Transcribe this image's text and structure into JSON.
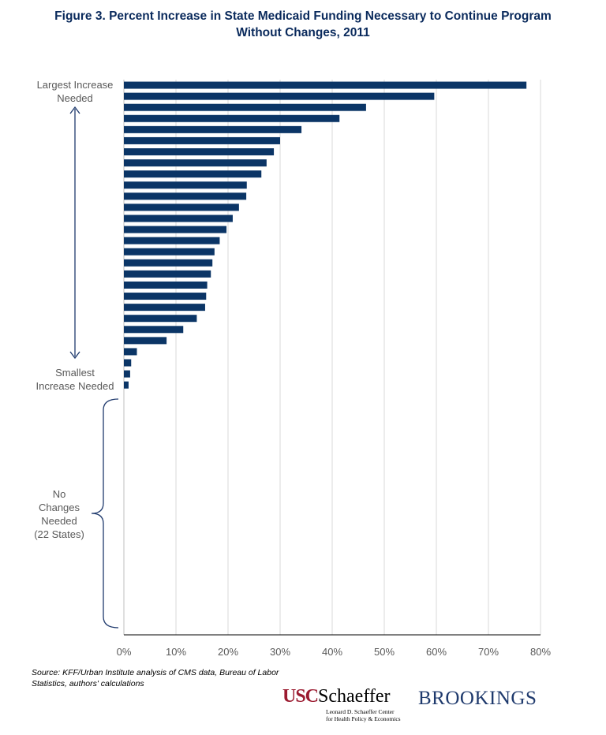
{
  "title_lines": [
    "Figure 3. Percent Increase in State Medicaid Funding Necessary to Continue Program",
    "Without Changes, 2011"
  ],
  "annotations": {
    "largest": [
      "Largest Increase",
      "Needed"
    ],
    "smallest": [
      "Smallest",
      "Increase Needed"
    ],
    "no_changes": [
      "No",
      "Changes",
      "Needed",
      "(22 States)"
    ]
  },
  "source": [
    "Source: KFF/Urban Institute analysis of CMS data, Bureau of Labor",
    "Statistics, authors' calculations"
  ],
  "logos": {
    "usc_abbr": "USC",
    "usc_name": "Schaeffer",
    "usc_sub": [
      "Leonard D. Schaeffer Center",
      "for Health Policy & Economics"
    ],
    "brookings": "BROOKINGS"
  },
  "colors": {
    "bar": "#0b3566",
    "title": "#0a2a5c",
    "grid": "#d9d9d9",
    "text": "#595959"
  },
  "chart_data": {
    "type": "bar",
    "orientation": "horizontal",
    "xlim": [
      0,
      80
    ],
    "x_ticks": [
      "0%",
      "10%",
      "20%",
      "30%",
      "40%",
      "50%",
      "60%",
      "70%",
      "80%"
    ],
    "values": [
      77.3,
      59.6,
      46.5,
      41.4,
      34.1,
      30.0,
      28.8,
      27.4,
      26.4,
      23.6,
      23.5,
      22.1,
      20.9,
      19.7,
      18.4,
      17.4,
      17.0,
      16.7,
      16.0,
      15.8,
      15.6,
      14.0,
      11.4,
      8.2,
      2.5,
      1.4,
      1.2,
      0.9,
      0,
      0,
      0,
      0,
      0,
      0,
      0,
      0,
      0,
      0,
      0,
      0,
      0,
      0,
      0,
      0,
      0,
      0,
      0,
      0,
      0,
      0
    ],
    "grid": true
  }
}
